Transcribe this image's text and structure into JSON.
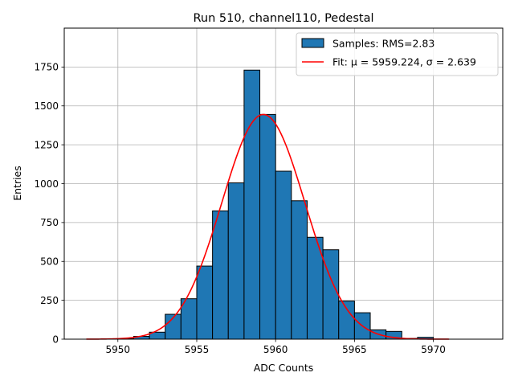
{
  "chart_data": {
    "type": "bar",
    "title": "Run 510, channel110, Pedestal",
    "xlabel": "ADC Counts",
    "ylabel": "Entries",
    "xlim": [
      5946.6,
      5974.4
    ],
    "ylim": [
      0,
      2000
    ],
    "x_ticks": [
      5950,
      5955,
      5960,
      5965,
      5970
    ],
    "y_ticks": [
      0,
      250,
      500,
      750,
      1000,
      1250,
      1500,
      1750
    ],
    "grid": true,
    "legend_position": "top-right",
    "bin_edges": [
      5948,
      5949,
      5950,
      5951,
      5952,
      5953,
      5954,
      5955,
      5956,
      5957,
      5958,
      5959,
      5960,
      5961,
      5962,
      5963,
      5964,
      5965,
      5966,
      5967,
      5968,
      5969,
      5970,
      5971,
      5972,
      5973
    ],
    "series": [
      {
        "name": "Samples: RMS=2.83",
        "kind": "histogram",
        "color": "#1f77b4",
        "edge_color": "#000000",
        "values": [
          0,
          0,
          3,
          18,
          45,
          160,
          260,
          470,
          825,
          1005,
          1730,
          1445,
          1080,
          890,
          655,
          575,
          245,
          170,
          60,
          50,
          5,
          12,
          0,
          0,
          0
        ]
      },
      {
        "name": "Fit: μ = 5959.224, σ = 2.639",
        "kind": "gaussian-fit",
        "color": "#ff0000",
        "mu": 5959.224,
        "sigma": 2.639,
        "amplitude": 1445,
        "x_range": [
          5948,
          5971
        ]
      }
    ]
  }
}
